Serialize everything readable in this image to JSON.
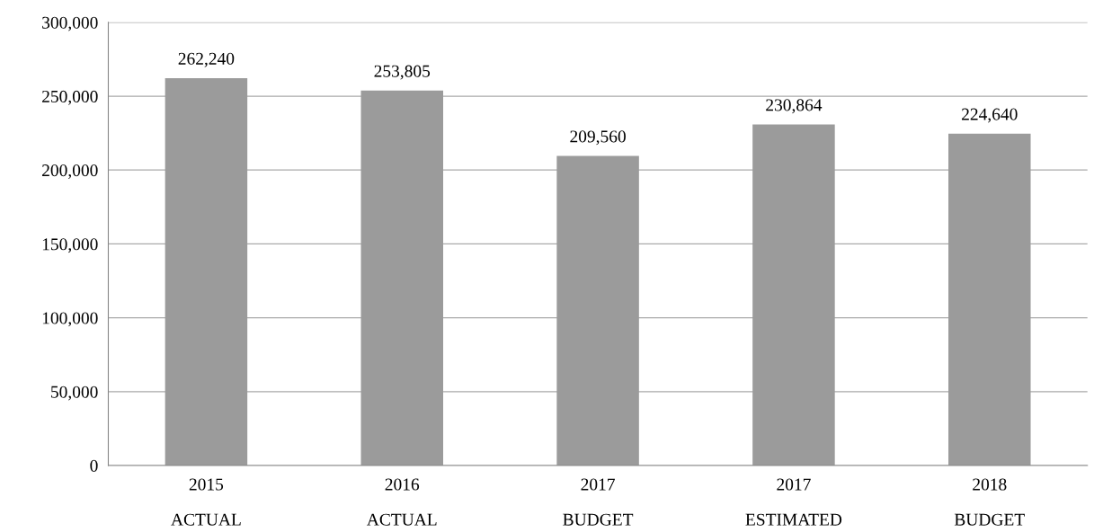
{
  "chart_data": {
    "type": "bar",
    "categories": [
      "2015\nACTUAL",
      "2016\nACTUAL",
      "2017\nBUDGET",
      "2017\nESTIMATED",
      "2018\nBUDGET"
    ],
    "values": [
      262240,
      253805,
      209560,
      230864,
      224640
    ],
    "color": "#9b9b9b",
    "ylim": [
      0,
      300000
    ],
    "yticks": [
      {
        "value": 0,
        "label": "0"
      },
      {
        "value": 50000,
        "label": "50,000"
      },
      {
        "value": 100000,
        "label": "100,000"
      },
      {
        "value": 150000,
        "label": "150,000"
      },
      {
        "value": 200000,
        "label": "200,000"
      },
      {
        "value": 250000,
        "label": "250,000"
      },
      {
        "value": 300000,
        "label": "300,000"
      }
    ],
    "value_labels": [
      "262,240",
      "253,805",
      "209,560",
      "230,864",
      "224,640"
    ],
    "grid": "y"
  }
}
